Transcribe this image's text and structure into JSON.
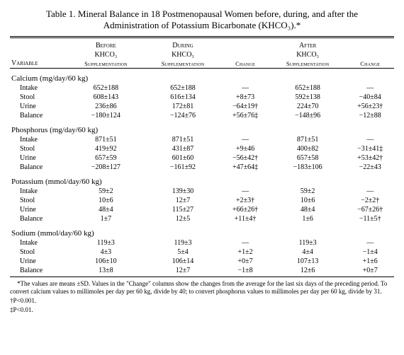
{
  "title_line1": "Table 1. Mineral Balance in 18 Postmenopausal Women before, during, and after the",
  "title_line2": "Administration of Potassium Bicarbonate (KHCO₃).*",
  "headers": {
    "variable": "Variable",
    "before_l1": "Before",
    "before_l2": "KHCO₃",
    "during_l1": "During",
    "during_l2": "KHCO₃",
    "after_l1": "After",
    "after_l2": "KHCO₃",
    "supp": "Supplementation",
    "change": "Change"
  },
  "sections": [
    {
      "label": "Calcium (mg/day/60 kg)",
      "rows": [
        {
          "lbl": "Intake",
          "c": [
            "652±188",
            "652±188",
            "—",
            "652±188",
            "—"
          ]
        },
        {
          "lbl": "Stool",
          "c": [
            "608±143",
            "616±134",
            "+8±73",
            "592±138",
            "−40±84"
          ]
        },
        {
          "lbl": "Urine",
          "c": [
            "236±86",
            "172±81",
            "−64±19†",
            "224±70",
            "+56±23†"
          ]
        },
        {
          "lbl": "Balance",
          "c": [
            "−180±124",
            "−124±76",
            "+56±76‡",
            "−148±96",
            "−12±88"
          ]
        }
      ]
    },
    {
      "label": "Phosphorus (mg/day/60 kg)",
      "rows": [
        {
          "lbl": "Intake",
          "c": [
            "871±51",
            "871±51",
            "—",
            "871±51",
            "—"
          ]
        },
        {
          "lbl": "Stool",
          "c": [
            "419±92",
            "431±87",
            "+9±46",
            "400±82",
            "−31±41‡"
          ]
        },
        {
          "lbl": "Urine",
          "c": [
            "657±59",
            "601±60",
            "−56±42†",
            "657±58",
            "+53±42†"
          ]
        },
        {
          "lbl": "Balance",
          "c": [
            "−208±127",
            "−161±92",
            "+47±64‡",
            "−183±106",
            "−22±43"
          ]
        }
      ]
    },
    {
      "label": "Potassium (mmol/day/60 kg)",
      "rows": [
        {
          "lbl": "Intake",
          "c": [
            "59±2",
            "139±30",
            "—",
            "59±2",
            "—"
          ]
        },
        {
          "lbl": "Stool",
          "c": [
            "10±6",
            "12±7",
            "+2±3†",
            "10±6",
            "−2±2†"
          ]
        },
        {
          "lbl": "Urine",
          "c": [
            "48±4",
            "115±27",
            "+66±26†",
            "48±4",
            "−67±26†"
          ]
        },
        {
          "lbl": "Balance",
          "c": [
            "1±7",
            "12±5",
            "+11±4†",
            "1±6",
            "−11±5†"
          ]
        }
      ]
    },
    {
      "label": "Sodium (mmol/day/60 kg)",
      "rows": [
        {
          "lbl": "Intake",
          "c": [
            "119±3",
            "119±3",
            "—",
            "119±3",
            "—"
          ]
        },
        {
          "lbl": "Stool",
          "c": [
            "4±3",
            "5±4",
            "+1±2",
            "4±4",
            "−1±4"
          ]
        },
        {
          "lbl": "Urine",
          "c": [
            "106±10",
            "106±14",
            "+0±7",
            "107±13",
            "+1±6"
          ]
        },
        {
          "lbl": "Balance",
          "c": [
            "13±8",
            "12±7",
            "−1±8",
            "12±6",
            "+0±7"
          ]
        }
      ]
    }
  ],
  "footnotes": {
    "main": "*The values are means ±SD. Values in the \"Change\" columns show the changes from the average for the last six days of the preceding period. To convert calcium values to millimoles per day per 60 kg, divide by 40; to convert phosphorus values to millimoles per day per 60 kg, divide by 31.",
    "dagger": "†P<0.001.",
    "ddagger": "‡P<0.01."
  }
}
